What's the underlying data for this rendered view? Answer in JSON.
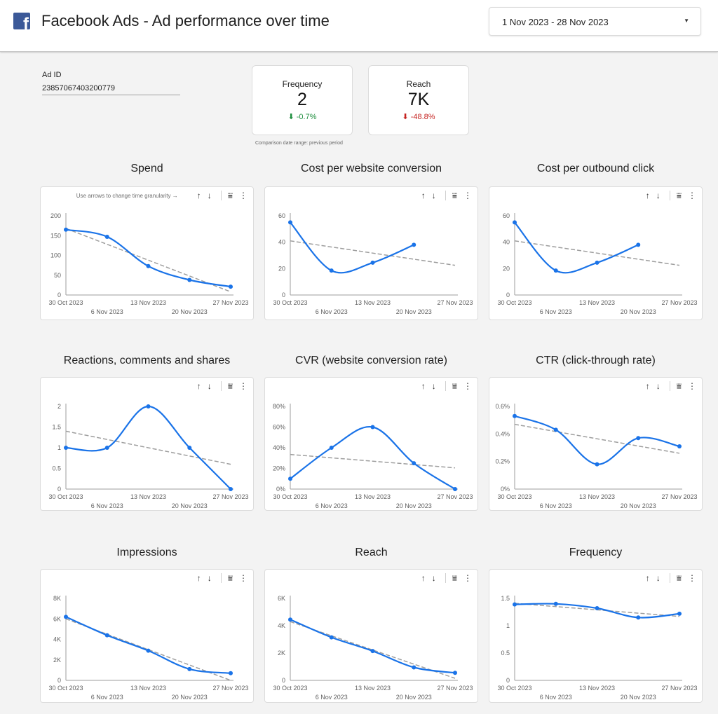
{
  "header": {
    "logo_icon": "facebook-logo-icon",
    "title": "Facebook Ads - Ad performance over time",
    "date_range": "1 Nov 2023 - 28 Nov 2023",
    "caret": "▼"
  },
  "filter": {
    "label": "Ad ID",
    "value": "23857067403200779"
  },
  "scorecards": [
    {
      "label": "Frequency",
      "value": "2",
      "change": "⬇ -0.7%",
      "change_color": "#1e8e3e"
    },
    {
      "label": "Reach",
      "value": "7K",
      "change": "⬇ -48.8%",
      "change_color": "#c5221f"
    }
  ],
  "comparison_note": "Comparison date range: previous period",
  "toolbar": {
    "hint": "Use arrows to change time granularity →",
    "up": "↑",
    "down": "↓",
    "filter": "⩸",
    "more": "⋮"
  },
  "colors": {
    "series": "#1a73e8",
    "trend": "#9e9e9e",
    "positive": "#1e8e3e",
    "negative": "#c5221f"
  },
  "chart_data": [
    {
      "type": "line",
      "title": "Spend",
      "x": [
        "30 Oct 2023",
        "6 Nov 2023",
        "13 Nov 2023",
        "20 Nov 2023",
        "27 Nov 2023"
      ],
      "values": [
        165,
        147,
        73,
        38,
        21
      ],
      "yticks": [
        0,
        50,
        100,
        150,
        200
      ],
      "ytick_labels": [
        "0",
        "50",
        "100",
        "150",
        "200"
      ],
      "ylim": [
        0,
        200
      ],
      "trendline": [
        168,
        8
      ],
      "grid": false,
      "legend": "none"
    },
    {
      "type": "line",
      "title": "Cost per website conversion",
      "x": [
        "30 Oct 2023",
        "6 Nov 2023",
        "13 Nov 2023",
        "20 Nov 2023",
        "27 Nov 2023"
      ],
      "values": [
        55,
        18.5,
        24.5,
        38,
        null
      ],
      "yticks": [
        0,
        20,
        40,
        60
      ],
      "ytick_labels": [
        "0",
        "20",
        "40",
        "60"
      ],
      "ylim": [
        0,
        60
      ],
      "trendline": [
        41,
        22.5
      ],
      "grid": false,
      "legend": "none"
    },
    {
      "type": "line",
      "title": "Cost per outbound click",
      "x": [
        "30 Oct 2023",
        "6 Nov 2023",
        "13 Nov 2023",
        "20 Nov 2023",
        "27 Nov 2023"
      ],
      "values": [
        55,
        18.5,
        24.5,
        38,
        null
      ],
      "yticks": [
        0,
        20,
        40,
        60
      ],
      "ytick_labels": [
        "0",
        "20",
        "40",
        "60"
      ],
      "ylim": [
        0,
        60
      ],
      "trendline": [
        41,
        22.5
      ],
      "grid": false,
      "legend": "none"
    },
    {
      "type": "line",
      "title": "Reactions, comments and shares",
      "x": [
        "30 Oct 2023",
        "6 Nov 2023",
        "13 Nov 2023",
        "20 Nov 2023",
        "27 Nov 2023"
      ],
      "values": [
        1,
        1,
        2,
        1,
        0
      ],
      "yticks": [
        0,
        0.5,
        1,
        1.5,
        2
      ],
      "ytick_labels": [
        "0",
        "0.5",
        "1",
        "1.5",
        "2"
      ],
      "ylim": [
        0,
        2
      ],
      "trendline": [
        1.4,
        0.6
      ],
      "grid": false,
      "legend": "none"
    },
    {
      "type": "line",
      "title": "CVR (website conversion rate)",
      "x": [
        "30 Oct 2023",
        "6 Nov 2023",
        "13 Nov 2023",
        "20 Nov 2023",
        "27 Nov 2023"
      ],
      "values": [
        10,
        40,
        60,
        25,
        0
      ],
      "yticks": [
        0,
        20,
        40,
        60,
        80
      ],
      "ytick_labels": [
        "0%",
        "20%",
        "40%",
        "60%",
        "80%"
      ],
      "ylim": [
        0,
        80
      ],
      "trendline": [
        33.5,
        20.5
      ],
      "grid": false,
      "legend": "none"
    },
    {
      "type": "line",
      "title": "CTR (click-through rate)",
      "x": [
        "30 Oct 2023",
        "6 Nov 2023",
        "13 Nov 2023",
        "20 Nov 2023",
        "27 Nov 2023"
      ],
      "values": [
        0.53,
        0.43,
        0.18,
        0.37,
        0.31
      ],
      "yticks": [
        0,
        0.2,
        0.4,
        0.6
      ],
      "ytick_labels": [
        "0%",
        "0.2%",
        "0.4%",
        "0.6%"
      ],
      "ylim": [
        0,
        0.6
      ],
      "trendline": [
        0.47,
        0.26
      ],
      "grid": false,
      "legend": "none"
    },
    {
      "type": "line",
      "title": "Impressions",
      "x": [
        "30 Oct 2023",
        "6 Nov 2023",
        "13 Nov 2023",
        "20 Nov 2023",
        "27 Nov 2023"
      ],
      "values": [
        6200,
        4400,
        2900,
        1100,
        700
      ],
      "yticks": [
        0,
        2000,
        4000,
        6000,
        8000
      ],
      "ytick_labels": [
        "0",
        "2K",
        "4K",
        "6K",
        "8K"
      ],
      "ylim": [
        0,
        8000
      ],
      "trendline": [
        6000,
        0
      ],
      "grid": false,
      "legend": "none"
    },
    {
      "type": "line",
      "title": "Reach",
      "x": [
        "30 Oct 2023",
        "6 Nov 2023",
        "13 Nov 2023",
        "20 Nov 2023",
        "27 Nov 2023"
      ],
      "values": [
        4450,
        3150,
        2150,
        950,
        550
      ],
      "yticks": [
        0,
        2000,
        4000,
        6000
      ],
      "ytick_labels": [
        "0",
        "2K",
        "4K",
        "6K"
      ],
      "ylim": [
        0,
        6000
      ],
      "trendline": [
        4300,
        150
      ],
      "grid": false,
      "legend": "none"
    },
    {
      "type": "line",
      "title": "Frequency",
      "x": [
        "30 Oct 2023",
        "6 Nov 2023",
        "13 Nov 2023",
        "20 Nov 2023",
        "27 Nov 2023"
      ],
      "values": [
        1.39,
        1.4,
        1.32,
        1.15,
        1.22
      ],
      "yticks": [
        0,
        0.5,
        1,
        1.5
      ],
      "ytick_labels": [
        "0",
        "0.5",
        "1",
        "1.5"
      ],
      "ylim": [
        0,
        1.5
      ],
      "trendline": [
        1.41,
        1.17
      ],
      "grid": false,
      "legend": "none"
    }
  ]
}
